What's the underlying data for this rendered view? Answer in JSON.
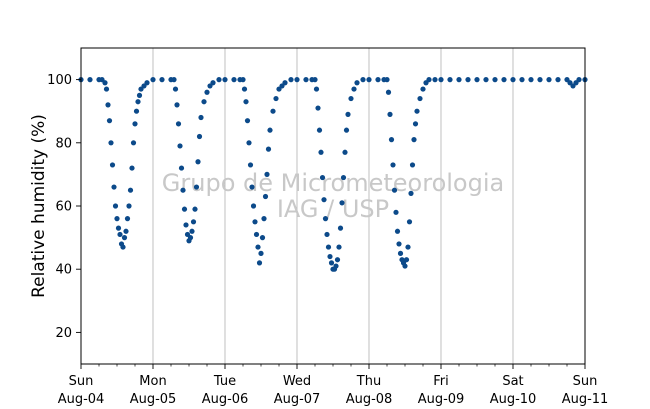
{
  "chart_data": {
    "type": "scatter",
    "title": "",
    "xlabel": "",
    "ylabel": "Relative humidity (%)",
    "ylim": [
      10,
      110
    ],
    "yticks": [
      20,
      40,
      60,
      80,
      100
    ],
    "xlim": [
      "2019-08-04T00:00",
      "2019-08-11T00:00"
    ],
    "xticks": [
      {
        "day": "Sun",
        "date": "Aug-04"
      },
      {
        "day": "Mon",
        "date": "Aug-05"
      },
      {
        "day": "Tue",
        "date": "Aug-06"
      },
      {
        "day": "Wed",
        "date": "Aug-07"
      },
      {
        "day": "Thu",
        "date": "Aug-08"
      },
      {
        "day": "Fri",
        "date": "Aug-09"
      },
      {
        "day": "Sat",
        "date": "Aug-10"
      },
      {
        "day": "Sun",
        "date": "Aug-11"
      }
    ],
    "grid": "vertical",
    "marker_color": "#0c4a8a",
    "watermark": [
      "Grupo de Micrometeorologia",
      "IAG / USP"
    ],
    "series": [
      {
        "points": [
          [
            "2019-08-04T00:00",
            100
          ],
          [
            "2019-08-04T03:00",
            100
          ],
          [
            "2019-08-04T06:00",
            100
          ],
          [
            "2019-08-04T07:00",
            100
          ],
          [
            "2019-08-04T08:00",
            99
          ],
          [
            "2019-08-04T08:30",
            97
          ],
          [
            "2019-08-04T09:00",
            92
          ],
          [
            "2019-08-04T09:30",
            87
          ],
          [
            "2019-08-04T10:00",
            80
          ],
          [
            "2019-08-04T10:30",
            73
          ],
          [
            "2019-08-04T11:00",
            66
          ],
          [
            "2019-08-04T11:30",
            60
          ],
          [
            "2019-08-04T12:00",
            56
          ],
          [
            "2019-08-04T12:30",
            53
          ],
          [
            "2019-08-04T13:00",
            51
          ],
          [
            "2019-08-04T13:30",
            48
          ],
          [
            "2019-08-04T14:00",
            47
          ],
          [
            "2019-08-04T14:30",
            50
          ],
          [
            "2019-08-04T15:00",
            52
          ],
          [
            "2019-08-04T15:30",
            56
          ],
          [
            "2019-08-04T16:00",
            60
          ],
          [
            "2019-08-04T16:30",
            65
          ],
          [
            "2019-08-04T17:00",
            72
          ],
          [
            "2019-08-04T17:30",
            80
          ],
          [
            "2019-08-04T18:00",
            86
          ],
          [
            "2019-08-04T18:30",
            90
          ],
          [
            "2019-08-04T19:00",
            93
          ],
          [
            "2019-08-04T19:30",
            95
          ],
          [
            "2019-08-04T20:00",
            97
          ],
          [
            "2019-08-04T21:00",
            98
          ],
          [
            "2019-08-04T22:00",
            99
          ],
          [
            "2019-08-05T00:00",
            100
          ],
          [
            "2019-08-05T03:00",
            100
          ],
          [
            "2019-08-05T06:00",
            100
          ],
          [
            "2019-08-05T07:00",
            100
          ],
          [
            "2019-08-05T07:30",
            97
          ],
          [
            "2019-08-05T08:00",
            92
          ],
          [
            "2019-08-05T08:30",
            86
          ],
          [
            "2019-08-05T09:00",
            79
          ],
          [
            "2019-08-05T09:30",
            72
          ],
          [
            "2019-08-05T10:00",
            65
          ],
          [
            "2019-08-05T10:30",
            59
          ],
          [
            "2019-08-05T11:00",
            54
          ],
          [
            "2019-08-05T11:30",
            51
          ],
          [
            "2019-08-05T12:00",
            49
          ],
          [
            "2019-08-05T12:30",
            50
          ],
          [
            "2019-08-05T13:00",
            52
          ],
          [
            "2019-08-05T13:30",
            55
          ],
          [
            "2019-08-05T14:00",
            59
          ],
          [
            "2019-08-05T14:30",
            66
          ],
          [
            "2019-08-05T15:00",
            74
          ],
          [
            "2019-08-05T15:30",
            82
          ],
          [
            "2019-08-05T16:00",
            88
          ],
          [
            "2019-08-05T17:00",
            93
          ],
          [
            "2019-08-05T18:00",
            96
          ],
          [
            "2019-08-05T19:00",
            98
          ],
          [
            "2019-08-05T20:00",
            99
          ],
          [
            "2019-08-05T22:00",
            100
          ],
          [
            "2019-08-06T00:00",
            100
          ],
          [
            "2019-08-06T03:00",
            100
          ],
          [
            "2019-08-06T05:00",
            100
          ],
          [
            "2019-08-06T06:00",
            100
          ],
          [
            "2019-08-06T06:30",
            97
          ],
          [
            "2019-08-06T07:00",
            93
          ],
          [
            "2019-08-06T07:30",
            87
          ],
          [
            "2019-08-06T08:00",
            80
          ],
          [
            "2019-08-06T08:30",
            73
          ],
          [
            "2019-08-06T09:00",
            66
          ],
          [
            "2019-08-06T09:30",
            60
          ],
          [
            "2019-08-06T10:00",
            55
          ],
          [
            "2019-08-06T10:30",
            51
          ],
          [
            "2019-08-06T11:00",
            47
          ],
          [
            "2019-08-06T11:30",
            42
          ],
          [
            "2019-08-06T12:00",
            45
          ],
          [
            "2019-08-06T12:30",
            50
          ],
          [
            "2019-08-06T13:00",
            56
          ],
          [
            "2019-08-06T13:30",
            63
          ],
          [
            "2019-08-06T14:00",
            70
          ],
          [
            "2019-08-06T14:30",
            78
          ],
          [
            "2019-08-06T15:00",
            84
          ],
          [
            "2019-08-06T16:00",
            90
          ],
          [
            "2019-08-06T17:00",
            94
          ],
          [
            "2019-08-06T18:00",
            97
          ],
          [
            "2019-08-06T19:00",
            98
          ],
          [
            "2019-08-06T20:00",
            99
          ],
          [
            "2019-08-06T22:00",
            100
          ],
          [
            "2019-08-07T00:00",
            100
          ],
          [
            "2019-08-07T03:00",
            100
          ],
          [
            "2019-08-07T05:00",
            100
          ],
          [
            "2019-08-07T06:00",
            100
          ],
          [
            "2019-08-07T06:30",
            97
          ],
          [
            "2019-08-07T07:00",
            91
          ],
          [
            "2019-08-07T07:30",
            84
          ],
          [
            "2019-08-07T08:00",
            77
          ],
          [
            "2019-08-07T08:30",
            69
          ],
          [
            "2019-08-07T09:00",
            62
          ],
          [
            "2019-08-07T09:30",
            56
          ],
          [
            "2019-08-07T10:00",
            51
          ],
          [
            "2019-08-07T10:30",
            47
          ],
          [
            "2019-08-07T11:00",
            44
          ],
          [
            "2019-08-07T11:30",
            42
          ],
          [
            "2019-08-07T12:00",
            40
          ],
          [
            "2019-08-07T12:30",
            40
          ],
          [
            "2019-08-07T13:00",
            41
          ],
          [
            "2019-08-07T13:30",
            43
          ],
          [
            "2019-08-07T14:00",
            47
          ],
          [
            "2019-08-07T14:30",
            53
          ],
          [
            "2019-08-07T15:00",
            61
          ],
          [
            "2019-08-07T15:30",
            69
          ],
          [
            "2019-08-07T16:00",
            77
          ],
          [
            "2019-08-07T16:30",
            84
          ],
          [
            "2019-08-07T17:00",
            89
          ],
          [
            "2019-08-07T18:00",
            94
          ],
          [
            "2019-08-07T19:00",
            97
          ],
          [
            "2019-08-07T20:00",
            99
          ],
          [
            "2019-08-07T22:00",
            100
          ],
          [
            "2019-08-08T00:00",
            100
          ],
          [
            "2019-08-08T03:00",
            100
          ],
          [
            "2019-08-08T05:00",
            100
          ],
          [
            "2019-08-08T06:00",
            100
          ],
          [
            "2019-08-08T06:30",
            96
          ],
          [
            "2019-08-08T07:00",
            89
          ],
          [
            "2019-08-08T07:30",
            81
          ],
          [
            "2019-08-08T08:00",
            73
          ],
          [
            "2019-08-08T08:30",
            65
          ],
          [
            "2019-08-08T09:00",
            58
          ],
          [
            "2019-08-08T09:30",
            52
          ],
          [
            "2019-08-08T10:00",
            48
          ],
          [
            "2019-08-08T10:30",
            45
          ],
          [
            "2019-08-08T11:00",
            43
          ],
          [
            "2019-08-08T11:30",
            42
          ],
          [
            "2019-08-08T12:00",
            41
          ],
          [
            "2019-08-08T12:30",
            43
          ],
          [
            "2019-08-08T13:00",
            47
          ],
          [
            "2019-08-08T13:30",
            55
          ],
          [
            "2019-08-08T14:00",
            64
          ],
          [
            "2019-08-08T14:30",
            73
          ],
          [
            "2019-08-08T15:00",
            81
          ],
          [
            "2019-08-08T15:30",
            86
          ],
          [
            "2019-08-08T16:00",
            90
          ],
          [
            "2019-08-08T17:00",
            94
          ],
          [
            "2019-08-08T18:00",
            97
          ],
          [
            "2019-08-08T19:00",
            99
          ],
          [
            "2019-08-08T20:00",
            100
          ],
          [
            "2019-08-08T22:00",
            100
          ],
          [
            "2019-08-09T00:00",
            100
          ],
          [
            "2019-08-09T03:00",
            100
          ],
          [
            "2019-08-09T06:00",
            100
          ],
          [
            "2019-08-09T09:00",
            100
          ],
          [
            "2019-08-09T12:00",
            100
          ],
          [
            "2019-08-09T15:00",
            100
          ],
          [
            "2019-08-09T18:00",
            100
          ],
          [
            "2019-08-09T21:00",
            100
          ],
          [
            "2019-08-10T00:00",
            100
          ],
          [
            "2019-08-10T03:00",
            100
          ],
          [
            "2019-08-10T06:00",
            100
          ],
          [
            "2019-08-10T09:00",
            100
          ],
          [
            "2019-08-10T12:00",
            100
          ],
          [
            "2019-08-10T15:00",
            100
          ],
          [
            "2019-08-10T18:00",
            100
          ],
          [
            "2019-08-10T19:00",
            99
          ],
          [
            "2019-08-10T20:00",
            98
          ],
          [
            "2019-08-10T21:00",
            99
          ],
          [
            "2019-08-10T22:00",
            100
          ],
          [
            "2019-08-11T00:00",
            100
          ]
        ]
      }
    ]
  }
}
